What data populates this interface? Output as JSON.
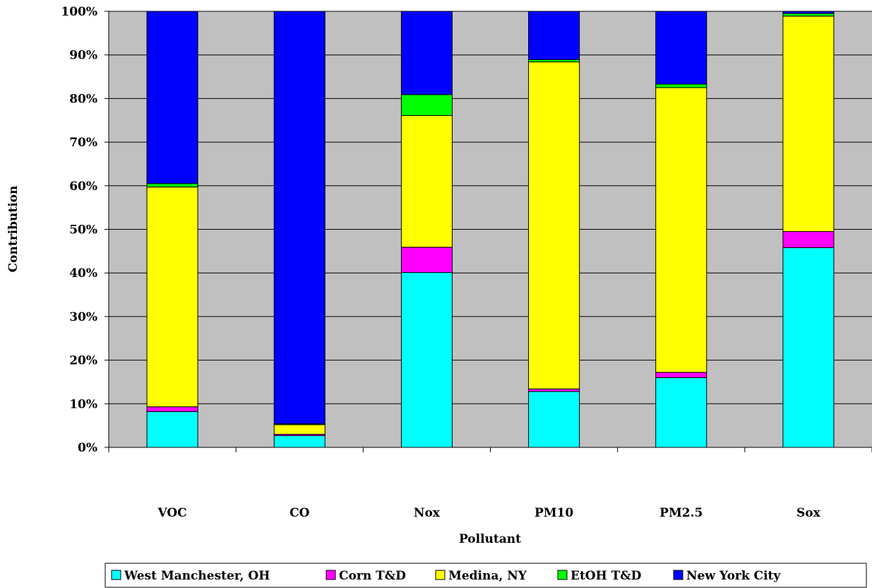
{
  "chart_data": {
    "type": "bar",
    "stacked": "percent",
    "xlabel": "Pollutant",
    "ylabel": "Contribution",
    "ylim": [
      0,
      100
    ],
    "ytick_labels": [
      "0%",
      "10%",
      "20%",
      "30%",
      "40%",
      "50%",
      "60%",
      "70%",
      "80%",
      "90%",
      "100%"
    ],
    "categories": [
      "VOC",
      "CO",
      "Nox",
      "PM10",
      "PM2.5",
      "Sox"
    ],
    "grid": true,
    "legend_position": "bottom",
    "series": [
      {
        "name": "West Manchester, OH",
        "color": "#00ffff",
        "values": [
          8.2,
          2.7,
          40.1,
          12.8,
          16.0,
          45.8
        ]
      },
      {
        "name": "Corn T&D",
        "color": "#ff00ff",
        "values": [
          1.1,
          0.3,
          5.8,
          0.6,
          1.2,
          3.7
        ]
      },
      {
        "name": "Medina, NY",
        "color": "#ffff00",
        "values": [
          50.4,
          2.2,
          30.2,
          75.0,
          65.3,
          49.4
        ]
      },
      {
        "name": "EtOH T&D",
        "color": "#00ff00",
        "values": [
          0.8,
          0.2,
          4.8,
          0.5,
          0.8,
          0.6
        ]
      },
      {
        "name": "New York City",
        "color": "#0000ff",
        "values": [
          39.5,
          94.6,
          19.1,
          11.1,
          16.7,
          0.5
        ]
      }
    ]
  },
  "colors": {
    "plot_background": "#c0c0c0"
  }
}
